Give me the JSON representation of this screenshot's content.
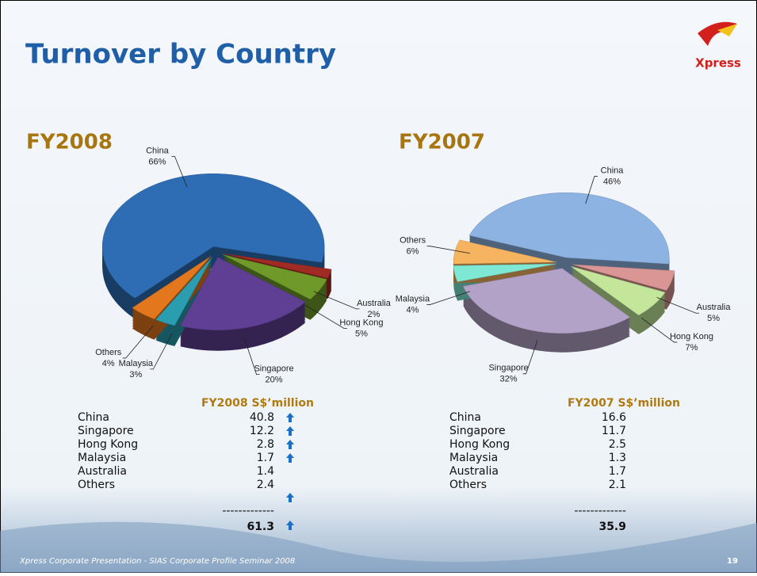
{
  "slide": {
    "title": "Turnover by Country",
    "logo": "Xpress",
    "footer": "Xpress Corporate Presentation - SIAS Corporate Profile Seminar 2008",
    "page_number": "19"
  },
  "chart_data": [
    {
      "type": "pie",
      "title": "FY2008",
      "categories": [
        "China",
        "Australia",
        "Hong Kong",
        "Singapore",
        "Malaysia",
        "Others"
      ],
      "values": [
        66,
        2,
        5,
        20,
        3,
        4
      ],
      "value_labels": [
        "66%",
        "2%",
        "5%",
        "20%",
        "3%",
        "4%"
      ],
      "colors": [
        "#2e6db4",
        "#a02a24",
        "#6f9a2a",
        "#5f3f93",
        "#2a9db0",
        "#e2771e"
      ]
    },
    {
      "type": "pie",
      "title": "FY2007",
      "categories": [
        "China",
        "Australia",
        "Hong Kong",
        "Singapore",
        "Malaysia",
        "Others"
      ],
      "values": [
        46,
        5,
        7,
        32,
        4,
        6
      ],
      "value_labels": [
        "46%",
        "5%",
        "7%",
        "32%",
        "4%",
        "6%"
      ],
      "colors": [
        "#8db3e2",
        "#d99694",
        "#c3e69b",
        "#b3a2c7",
        "#7fe8d4",
        "#f7b460"
      ]
    }
  ],
  "tables": [
    {
      "header": "FY2008 S$’million",
      "rows": [
        [
          "China",
          "40.8"
        ],
        [
          "Singapore",
          "12.2"
        ],
        [
          "Hong Kong",
          "2.8"
        ],
        [
          "Malaysia",
          "1.7"
        ],
        [
          "Australia",
          "1.4"
        ],
        [
          "Others",
          "2.4"
        ]
      ],
      "separator": "-------------",
      "total": "61.3"
    },
    {
      "header": "FY2007 S$’million",
      "rows": [
        [
          "China",
          "16.6"
        ],
        [
          "Singapore",
          "11.7"
        ],
        [
          "Hong Kong",
          "2.5"
        ],
        [
          "Malaysia",
          "1.3"
        ],
        [
          "Australia",
          "1.7"
        ],
        [
          "Others",
          "2.1"
        ]
      ],
      "separator": "-------------",
      "total": "35.9"
    }
  ]
}
